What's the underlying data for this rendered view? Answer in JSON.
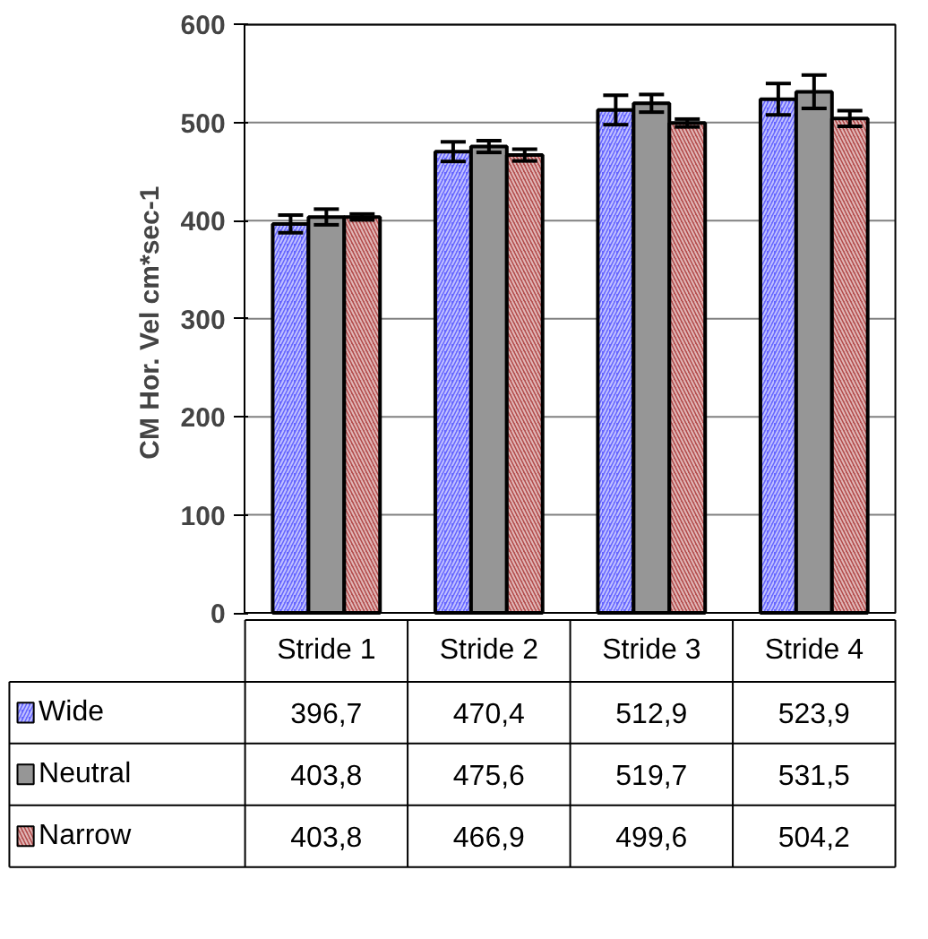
{
  "chart_data": {
    "type": "bar",
    "ylabel": "CM Hor. Vel  cm*sec-1",
    "categories": [
      "Stride 1",
      "Stride 2",
      "Stride 3",
      "Stride 4"
    ],
    "series": [
      {
        "name": "Wide",
        "color": "#6666ff",
        "values": [
          396.7,
          470.4,
          512.9,
          523.9
        ],
        "value_labels": [
          "396,7",
          "470,4",
          "512,9",
          "523,9"
        ],
        "errors": [
          9,
          10,
          15,
          16
        ]
      },
      {
        "name": "Neutral",
        "color": "#969696",
        "values": [
          403.8,
          475.6,
          519.7,
          531.5
        ],
        "value_labels": [
          "403,8",
          "475,6",
          "519,7",
          "531,5"
        ],
        "errors": [
          8,
          6,
          9,
          17
        ]
      },
      {
        "name": "Narrow",
        "color": "#b34d4d",
        "values": [
          403.8,
          466.9,
          499.6,
          504.2
        ],
        "value_labels": [
          "403,8",
          "466,9",
          "499,6",
          "504,2"
        ],
        "errors": [
          3,
          6,
          4,
          8
        ]
      }
    ],
    "ylim": [
      0,
      600
    ],
    "yticks": [
      0,
      100,
      200,
      300,
      400,
      500,
      600
    ],
    "grid": "y",
    "legend": "bottom"
  }
}
